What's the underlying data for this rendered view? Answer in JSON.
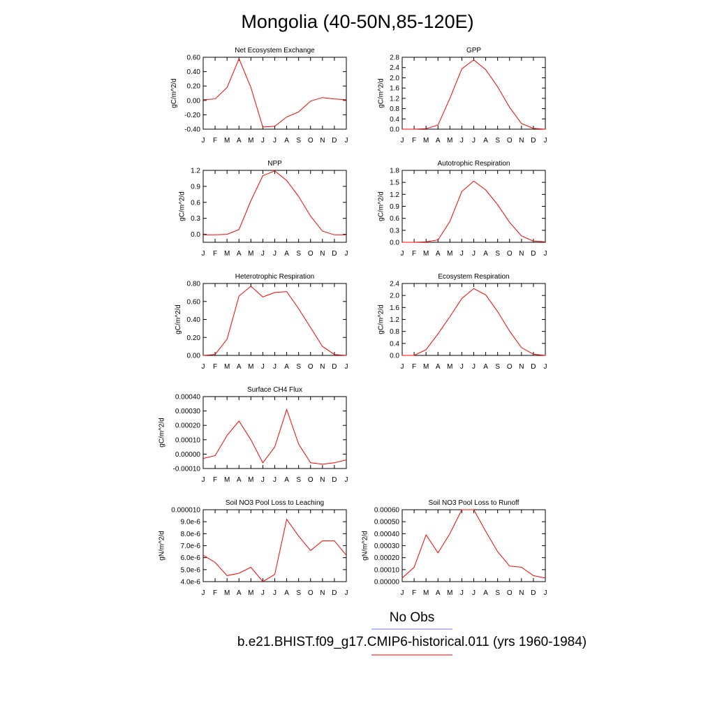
{
  "figure": {
    "title": "Mongolia (40-50N,85-120E)",
    "legend": [
      {
        "label": "No Obs",
        "color": "#7777ff"
      },
      {
        "label": "b.e21.BHIST.f09_g17.CMIP6-historical.011 (yrs 1960-1984)",
        "color": "#ff0000"
      }
    ]
  },
  "chart_data": [
    {
      "id": "nee",
      "type": "line",
      "title": "Net Ecosystem Exchange",
      "ylabel": "gC/m^2/d",
      "x": [
        "J",
        "F",
        "M",
        "A",
        "M",
        "J",
        "J",
        "A",
        "S",
        "O",
        "N",
        "D",
        "J"
      ],
      "ylim": [
        -0.4,
        0.6
      ],
      "yticks": [
        "-0.40",
        "-0.20",
        "0.00",
        "0.20",
        "0.40",
        "0.60"
      ],
      "series": [
        {
          "color": "#ff0000",
          "values": [
            0.01,
            0.02,
            0.18,
            0.58,
            0.18,
            -0.37,
            -0.36,
            -0.23,
            -0.16,
            -0.01,
            0.04,
            0.02,
            0.01
          ]
        }
      ]
    },
    {
      "id": "gpp",
      "type": "line",
      "title": "GPP",
      "ylabel": "gC/m^2/d",
      "x": [
        "J",
        "F",
        "M",
        "A",
        "M",
        "J",
        "J",
        "A",
        "S",
        "O",
        "N",
        "D",
        "J"
      ],
      "ylim": [
        0,
        2.8
      ],
      "yticks": [
        "0.0",
        "0.4",
        "0.8",
        "1.2",
        "1.6",
        "2.0",
        "2.4",
        "2.8"
      ],
      "series": [
        {
          "color": "#ff0000",
          "values": [
            0.0,
            0.0,
            0.02,
            0.16,
            1.2,
            2.35,
            2.7,
            2.32,
            1.65,
            0.85,
            0.22,
            0.03,
            0.0
          ]
        }
      ]
    },
    {
      "id": "npp",
      "type": "line",
      "title": "NPP",
      "ylabel": "gC/m^2/d",
      "x": [
        "J",
        "F",
        "M",
        "A",
        "M",
        "J",
        "J",
        "A",
        "S",
        "O",
        "N",
        "D",
        "J"
      ],
      "ylim": [
        -0.15,
        1.2
      ],
      "yticks": [
        "0.0",
        "0.3",
        "0.6",
        "0.9",
        "1.2"
      ],
      "series": [
        {
          "color": "#ff0000",
          "values": [
            -0.01,
            -0.01,
            0.0,
            0.09,
            0.63,
            1.1,
            1.19,
            1.01,
            0.71,
            0.34,
            0.06,
            -0.01,
            -0.01
          ]
        }
      ]
    },
    {
      "id": "ar",
      "type": "line",
      "title": "Autotrophic Respiration",
      "ylabel": "gC/m^2/d",
      "x": [
        "J",
        "F",
        "M",
        "A",
        "M",
        "J",
        "J",
        "A",
        "S",
        "O",
        "N",
        "D",
        "J"
      ],
      "ylim": [
        0,
        1.8
      ],
      "yticks": [
        "0.0",
        "0.3",
        "0.6",
        "0.9",
        "1.2",
        "1.5",
        "1.8"
      ],
      "series": [
        {
          "color": "#ff0000",
          "values": [
            0.0,
            0.0,
            0.01,
            0.06,
            0.52,
            1.27,
            1.53,
            1.31,
            0.94,
            0.5,
            0.16,
            0.03,
            0.01
          ]
        }
      ]
    },
    {
      "id": "hr",
      "type": "line",
      "title": "Heterotrophic Respiration",
      "ylabel": "gC/m^2/d",
      "x": [
        "J",
        "F",
        "M",
        "A",
        "M",
        "J",
        "J",
        "A",
        "S",
        "O",
        "N",
        "D",
        "J"
      ],
      "ylim": [
        0,
        0.8
      ],
      "yticks": [
        "0.00",
        "0.20",
        "0.40",
        "0.60",
        "0.80"
      ],
      "series": [
        {
          "color": "#ff0000",
          "values": [
            0.0,
            0.01,
            0.18,
            0.66,
            0.77,
            0.65,
            0.7,
            0.71,
            0.52,
            0.31,
            0.1,
            0.01,
            0.0
          ]
        }
      ]
    },
    {
      "id": "er",
      "type": "line",
      "title": "Ecosystem Respiration",
      "ylabel": "gC/m^2/d",
      "x": [
        "J",
        "F",
        "M",
        "A",
        "M",
        "J",
        "J",
        "A",
        "S",
        "O",
        "N",
        "D",
        "J"
      ],
      "ylim": [
        0,
        2.4
      ],
      "yticks": [
        "0.0",
        "0.4",
        "0.8",
        "1.2",
        "1.6",
        "2.0",
        "2.4"
      ],
      "series": [
        {
          "color": "#ff0000",
          "values": [
            0.0,
            0.0,
            0.19,
            0.72,
            1.29,
            1.9,
            2.23,
            2.02,
            1.46,
            0.81,
            0.26,
            0.04,
            0.0
          ]
        }
      ]
    },
    {
      "id": "ch4",
      "type": "line",
      "title": "Surface CH4 Flux",
      "ylabel": "gC/m^2/d",
      "x": [
        "J",
        "F",
        "M",
        "A",
        "M",
        "J",
        "J",
        "A",
        "S",
        "O",
        "N",
        "D",
        "J"
      ],
      "ylim": [
        -0.0001,
        0.0004
      ],
      "yticks": [
        "-0.00010",
        "0.00000",
        "0.00010",
        "0.00020",
        "0.00030",
        "0.00040"
      ],
      "series": [
        {
          "color": "#ff0000",
          "values": [
            -3e-05,
            -1e-05,
            0.00013,
            0.00023,
            0.0001,
            -6e-05,
            5e-05,
            0.00031,
            7e-05,
            -6e-05,
            -7e-05,
            -6e-05,
            -4e-05
          ]
        }
      ]
    },
    {
      "id": "leach",
      "type": "line",
      "title": "Soil NO3 Pool Loss to Leaching",
      "ylabel": "gN/m^2/d",
      "x": [
        "J",
        "F",
        "M",
        "A",
        "M",
        "J",
        "J",
        "A",
        "S",
        "O",
        "N",
        "D",
        "J"
      ],
      "ylim": [
        4e-06,
        1e-05
      ],
      "yticks": [
        "4.0e-6",
        "5.0e-6",
        "6.0e-6",
        "7.0e-6",
        "8.0e-6",
        "9.0e-6",
        "0.000010"
      ],
      "series": [
        {
          "color": "#ff0000",
          "values": [
            6.2e-06,
            5.6e-06,
            4.5e-06,
            4.7e-06,
            5.2e-06,
            4e-06,
            4.6e-06,
            9.2e-06,
            7.8e-06,
            6.6e-06,
            7.4e-06,
            7.4e-06,
            6.2e-06
          ]
        }
      ]
    },
    {
      "id": "runoff",
      "type": "line",
      "title": "Soil NO3 Pool Loss to Runoff",
      "ylabel": "gN/m^2/d",
      "x": [
        "J",
        "F",
        "M",
        "A",
        "M",
        "J",
        "J",
        "A",
        "S",
        "O",
        "N",
        "D",
        "J"
      ],
      "ylim": [
        0,
        0.0006
      ],
      "yticks": [
        "0.00000",
        "0.00010",
        "0.00020",
        "0.00030",
        "0.00040",
        "0.00050",
        "0.00060"
      ],
      "series": [
        {
          "color": "#ff0000",
          "values": [
            3e-05,
            0.00012,
            0.00039,
            0.00024,
            0.0004,
            0.0006,
            0.0006,
            0.00042,
            0.00025,
            0.00013,
            0.00012,
            5e-05,
            3e-05
          ]
        }
      ]
    }
  ]
}
